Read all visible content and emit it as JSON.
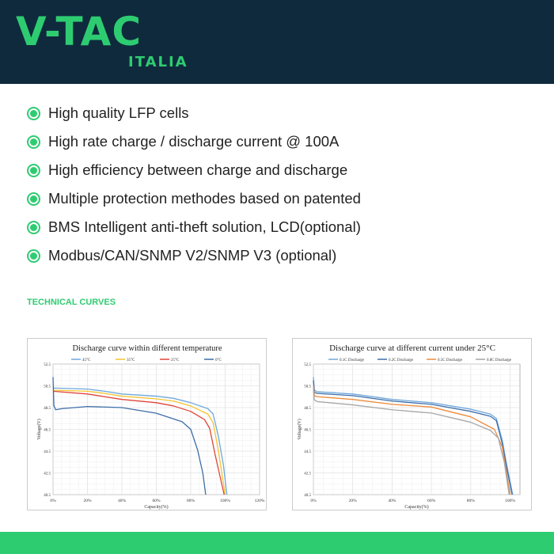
{
  "brand": {
    "logo": "V-TAC",
    "sub": "ITALIA",
    "colors": {
      "navy": "#0f2a3d",
      "green": "#2ecc71"
    }
  },
  "features": [
    "High quality LFP cells",
    "High rate charge / discharge current @ 100A",
    "High efficiency between charge and discharge",
    "Multiple protection methodes based on patented",
    "BMS Intelligent anti-theft solution, LCD(optional)",
    "Modbus/CAN/SNMP V2/SNMP V3 (optional)"
  ],
  "section_title": "TECHNICAL CURVES",
  "chart_data": [
    {
      "type": "line",
      "title": "Discharge curve within different temperature",
      "xlabel": "Capacity(%)",
      "ylabel": "Voltage(V)",
      "xlim": [
        0,
        120
      ],
      "ylim": [
        40.5,
        52.5
      ],
      "grid": true,
      "legend": "top",
      "xticks": [
        "0%",
        "20%",
        "40%",
        "60%",
        "80%",
        "100%",
        "120%"
      ],
      "xtick_values": [
        0,
        20,
        40,
        60,
        80,
        100,
        120
      ],
      "yticks": [
        "40.5",
        "42.5",
        "44.5",
        "46.5",
        "48.5",
        "50.5",
        "52.5"
      ],
      "ytick_values": [
        40.5,
        42.5,
        44.5,
        46.5,
        48.5,
        50.5,
        52.5
      ],
      "series": [
        {
          "name": "45°C",
          "color": "#6fa8dc",
          "points": [
            [
              0,
              50.3
            ],
            [
              20,
              50.2
            ],
            [
              30,
              50.0
            ],
            [
              40,
              49.75
            ],
            [
              60,
              49.55
            ],
            [
              70,
              49.35
            ],
            [
              80,
              48.95
            ],
            [
              90,
              48.4
            ],
            [
              93,
              47.9
            ],
            [
              96,
              45.9
            ],
            [
              99,
              43.2
            ],
            [
              101,
              40.5
            ]
          ]
        },
        {
          "name": "35°C",
          "color": "#f4c430",
          "points": [
            [
              0,
              50.1
            ],
            [
              20,
              50.0
            ],
            [
              30,
              49.8
            ],
            [
              40,
              49.55
            ],
            [
              60,
              49.3
            ],
            [
              70,
              49.1
            ],
            [
              80,
              48.65
            ],
            [
              90,
              47.9
            ],
            [
              93,
              47.1
            ],
            [
              96,
              44.6
            ],
            [
              100,
              40.5
            ]
          ]
        },
        {
          "name": "25°C",
          "color": "#e0443a",
          "points": [
            [
              0,
              50.0
            ],
            [
              20,
              49.75
            ],
            [
              30,
              49.5
            ],
            [
              40,
              49.25
            ],
            [
              60,
              48.95
            ],
            [
              70,
              48.65
            ],
            [
              80,
              48.15
            ],
            [
              88,
              47.4
            ],
            [
              91,
              46.6
            ],
            [
              94,
              44.3
            ],
            [
              99.4,
              40.5
            ]
          ]
        },
        {
          "name": "0°C",
          "color": "#3d6ea8",
          "points": [
            [
              0,
              51.3
            ],
            [
              0.5,
              48.7
            ],
            [
              1.5,
              48.3
            ],
            [
              5,
              48.4
            ],
            [
              20,
              48.6
            ],
            [
              40,
              48.5
            ],
            [
              60,
              47.98
            ],
            [
              75,
              47.2
            ],
            [
              80,
              46.5
            ],
            [
              84,
              44.6
            ],
            [
              87,
              42.5
            ],
            [
              88.7,
              40.5
            ]
          ]
        }
      ]
    },
    {
      "type": "line",
      "title": "Discharge curve at different current under 25°C",
      "xlabel": "Capacity(%)",
      "ylabel": "Voltage(V)",
      "xlim": [
        0,
        105
      ],
      "ylim": [
        40.5,
        52.5
      ],
      "grid": true,
      "legend": "top",
      "xticks": [
        "0%",
        "20%",
        "40%",
        "60%",
        "80%",
        "100%"
      ],
      "xtick_values": [
        0,
        20,
        40,
        60,
        80,
        100
      ],
      "yticks": [
        "40.5",
        "42.5",
        "44.5",
        "46.5",
        "48.5",
        "50.5",
        "52.5"
      ],
      "ytick_values": [
        40.5,
        42.5,
        44.5,
        46.5,
        48.5,
        50.5,
        52.5
      ],
      "series": [
        {
          "name": "0.1C Discharge",
          "color": "#6fa8dc",
          "points": [
            [
              0,
              51.3
            ],
            [
              0.5,
              50.1
            ],
            [
              2,
              49.95
            ],
            [
              20,
              49.75
            ],
            [
              40,
              49.25
            ],
            [
              60,
              48.95
            ],
            [
              80,
              48.35
            ],
            [
              90,
              47.9
            ],
            [
              93,
              47.5
            ],
            [
              96,
              45.5
            ],
            [
              98,
              43.5
            ],
            [
              101.3,
              40.5
            ]
          ]
        },
        {
          "name": "0.2C Discharge",
          "color": "#3d6ea8",
          "points": [
            [
              0,
              51.0
            ],
            [
              0.5,
              49.9
            ],
            [
              2,
              49.8
            ],
            [
              20,
              49.6
            ],
            [
              40,
              49.1
            ],
            [
              60,
              48.8
            ],
            [
              80,
              48.15
            ],
            [
              90,
              47.7
            ],
            [
              93,
              47.3
            ],
            [
              96,
              45.2
            ],
            [
              98,
              43.2
            ],
            [
              101,
              40.5
            ]
          ]
        },
        {
          "name": "0.5C Discharge",
          "color": "#ee8a3a",
          "points": [
            [
              0,
              50.5
            ],
            [
              0.5,
              49.6
            ],
            [
              2,
              49.5
            ],
            [
              20,
              49.25
            ],
            [
              40,
              48.8
            ],
            [
              60,
              48.55
            ],
            [
              80,
              47.65
            ],
            [
              92,
              46.5
            ],
            [
              96,
              44.9
            ],
            [
              100,
              40.5
            ]
          ]
        },
        {
          "name": "0.8C Discharge",
          "color": "#a6a6a6",
          "points": [
            [
              0,
              50.2
            ],
            [
              0.5,
              49.2
            ],
            [
              2,
              49.05
            ],
            [
              20,
              48.75
            ],
            [
              40,
              48.3
            ],
            [
              60,
              48.0
            ],
            [
              80,
              47.15
            ],
            [
              90,
              46.4
            ],
            [
              94,
              45.7
            ],
            [
              97,
              43.5
            ],
            [
              99.5,
              40.5
            ]
          ]
        }
      ]
    }
  ]
}
